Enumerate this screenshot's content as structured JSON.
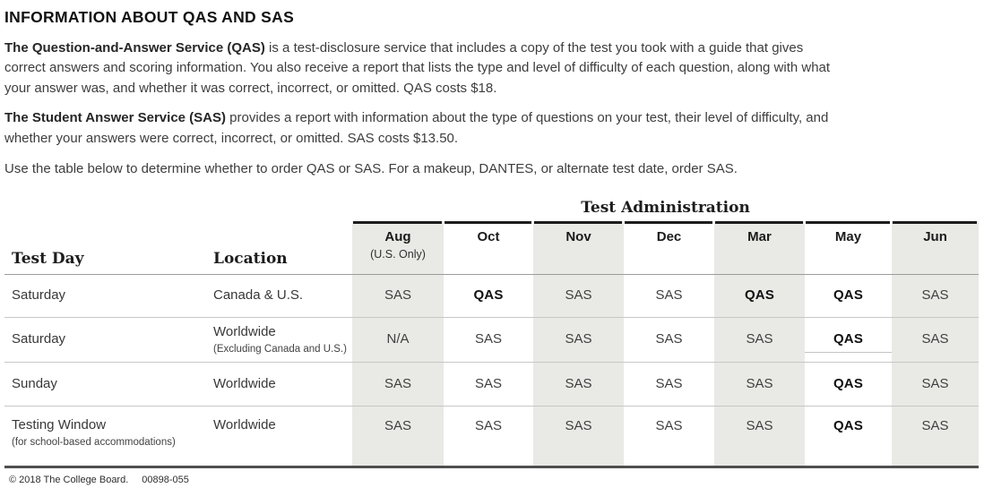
{
  "page": {
    "title": "INFORMATION ABOUT QAS AND SAS",
    "para_qas": {
      "bold": "The Question-and-Answer Service (QAS)",
      "text": " is a test-disclosure service that includes a copy of the test you took with a guide that gives correct answers and scoring information. You also receive a report that lists the type and level of difficulty of each question, along with what your answer was, and whether it was correct, incorrect, or omitted. QAS costs $18."
    },
    "para_sas": {
      "bold": "The Student Answer Service (SAS)",
      "text": " provides a report with information about the type of questions on your test, their level of difficulty, and whether your answers were correct, incorrect, or omitted. SAS costs $13.50."
    },
    "para_table_note": "Use the table below to determine whether to order QAS or SAS. For a makeup, DANTES, or alternate test date, order SAS.",
    "footer": {
      "copyright": "© 2018 The College Board.",
      "form_code": "00898-055"
    }
  },
  "table": {
    "group_header": "Test Administration",
    "headers": {
      "test_day": "Test Day",
      "location": "Location"
    },
    "months": [
      {
        "label": "Aug",
        "sub": "(U.S. Only)"
      },
      {
        "label": "Oct",
        "sub": ""
      },
      {
        "label": "Nov",
        "sub": ""
      },
      {
        "label": "Dec",
        "sub": ""
      },
      {
        "label": "Mar",
        "sub": ""
      },
      {
        "label": "May",
        "sub": ""
      },
      {
        "label": "Jun",
        "sub": ""
      }
    ],
    "colors": {
      "column_shade": "#e9e9e6",
      "rule_top": "#1c1c1c",
      "rule_bottom": "#4f4f4f",
      "rule_row": "#c7c7c7",
      "rule_header": "#9c9c9c"
    },
    "rows": [
      {
        "test_day": "Saturday",
        "test_day_sub": "",
        "location": "Canada & U.S.",
        "location_sub": "",
        "cells": [
          {
            "v": "SAS",
            "bold": false
          },
          {
            "v": "QAS",
            "bold": true
          },
          {
            "v": "SAS",
            "bold": false
          },
          {
            "v": "SAS",
            "bold": false
          },
          {
            "v": "QAS",
            "bold": true
          },
          {
            "v": "QAS",
            "bold": true
          },
          {
            "v": "SAS",
            "bold": false
          }
        ]
      },
      {
        "test_day": "Saturday",
        "test_day_sub": "",
        "location": "Worldwide",
        "location_sub": "(Excluding Canada and U.S.)",
        "cells": [
          {
            "v": "N/A",
            "bold": false
          },
          {
            "v": "SAS",
            "bold": false
          },
          {
            "v": "SAS",
            "bold": false
          },
          {
            "v": "SAS",
            "bold": false
          },
          {
            "v": "SAS",
            "bold": false
          },
          {
            "v": "QAS",
            "bold": true
          },
          {
            "v": "SAS",
            "bold": false
          }
        ]
      },
      {
        "test_day": "Sunday",
        "test_day_sub": "",
        "location": "Worldwide",
        "location_sub": "",
        "cells": [
          {
            "v": "SAS",
            "bold": false
          },
          {
            "v": "SAS",
            "bold": false
          },
          {
            "v": "SAS",
            "bold": false
          },
          {
            "v": "SAS",
            "bold": false
          },
          {
            "v": "SAS",
            "bold": false
          },
          {
            "v": "QAS",
            "bold": true
          },
          {
            "v": "SAS",
            "bold": false
          }
        ]
      },
      {
        "test_day": "Testing Window",
        "test_day_sub": "(for school-based accommodations)",
        "location": "Worldwide",
        "location_sub": "",
        "cells": [
          {
            "v": "SAS",
            "bold": false
          },
          {
            "v": "SAS",
            "bold": false
          },
          {
            "v": "SAS",
            "bold": false
          },
          {
            "v": "SAS",
            "bold": false
          },
          {
            "v": "SAS",
            "bold": false
          },
          {
            "v": "QAS",
            "bold": true
          },
          {
            "v": "SAS",
            "bold": false
          }
        ]
      }
    ]
  }
}
